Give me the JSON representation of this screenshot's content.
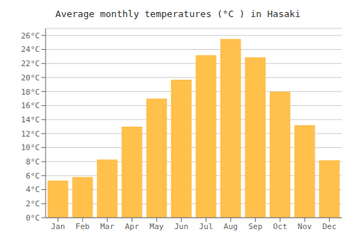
{
  "chart_data": {
    "type": "bar",
    "title": "Average monthly temperatures (°C ) in Hasaki",
    "categories": [
      "Jan",
      "Feb",
      "Mar",
      "Apr",
      "May",
      "Jun",
      "Jul",
      "Aug",
      "Sep",
      "Oct",
      "Nov",
      "Dec"
    ],
    "values": [
      5.3,
      5.8,
      8.3,
      13.0,
      17.0,
      19.7,
      23.2,
      25.5,
      22.9,
      18.0,
      13.2,
      8.2
    ],
    "color": "#FFC04C",
    "ylim": [
      0,
      27
    ],
    "yticks": [
      {
        "value": 0,
        "label": "0°C"
      },
      {
        "value": 2,
        "label": "2°C"
      },
      {
        "value": 4,
        "label": "4°C"
      },
      {
        "value": 6,
        "label": "6°C"
      },
      {
        "value": 8,
        "label": "8°C"
      },
      {
        "value": 10,
        "label": "10°C"
      },
      {
        "value": 12,
        "label": "12°C"
      },
      {
        "value": 14,
        "label": "14°C"
      },
      {
        "value": 16,
        "label": "16°C"
      },
      {
        "value": 18,
        "label": "18°C"
      },
      {
        "value": 20,
        "label": "20°C"
      },
      {
        "value": 22,
        "label": "22°C"
      },
      {
        "value": 24,
        "label": "24°C"
      },
      {
        "value": 26,
        "label": "26°C"
      }
    ],
    "grid": true
  }
}
